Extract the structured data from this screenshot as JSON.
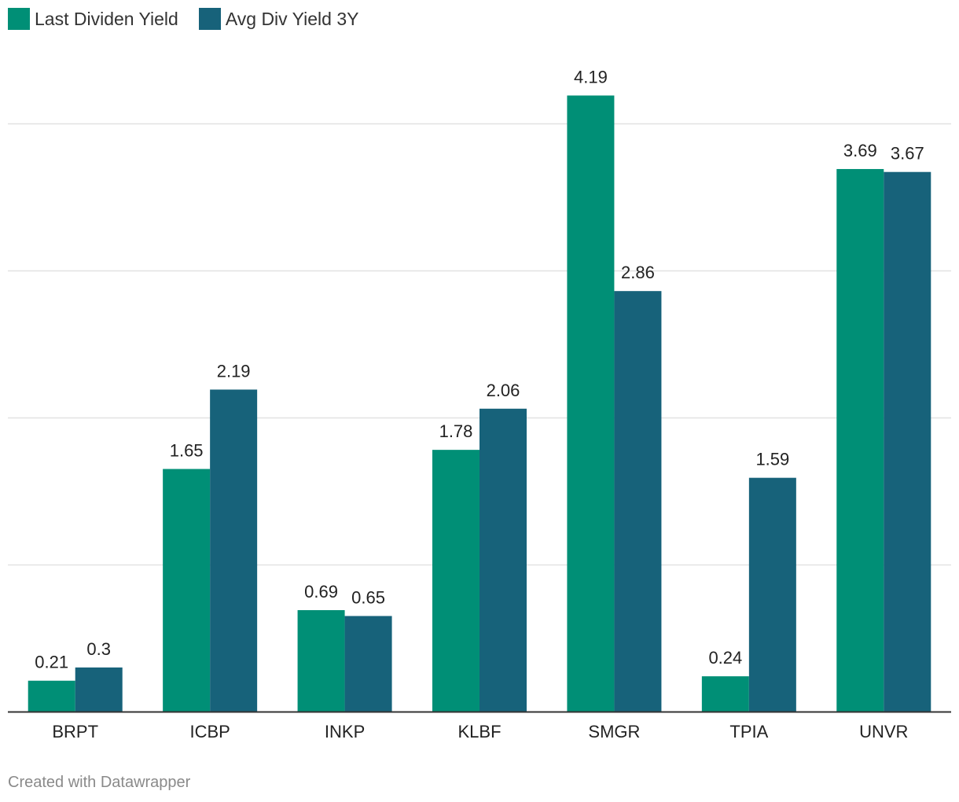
{
  "chart_data": {
    "type": "bar",
    "title": "",
    "xlabel": "",
    "ylabel": "",
    "ylim": [
      0,
      4.5
    ],
    "grid": true,
    "legend_position": "top-left",
    "categories": [
      "BRPT",
      "ICBP",
      "INKP",
      "KLBF",
      "SMGR",
      "TPIA",
      "UNVR"
    ],
    "series": [
      {
        "name": "Last Dividen Yield",
        "color": "#008f76",
        "values": [
          0.21,
          1.65,
          0.69,
          1.78,
          4.19,
          0.24,
          3.69
        ],
        "labels": [
          "0.21",
          "1.65",
          "0.69",
          "1.78",
          "4.19",
          "0.24",
          "3.69"
        ]
      },
      {
        "name": "Avg Div Yield 3Y",
        "color": "#17627a",
        "values": [
          0.3,
          2.19,
          0.65,
          2.06,
          2.86,
          1.59,
          3.67
        ],
        "labels": [
          "0.3",
          "2.19",
          "0.65",
          "2.06",
          "2.86",
          "1.59",
          "3.67"
        ]
      }
    ]
  },
  "footer": {
    "credit": "Created with Datawrapper"
  }
}
